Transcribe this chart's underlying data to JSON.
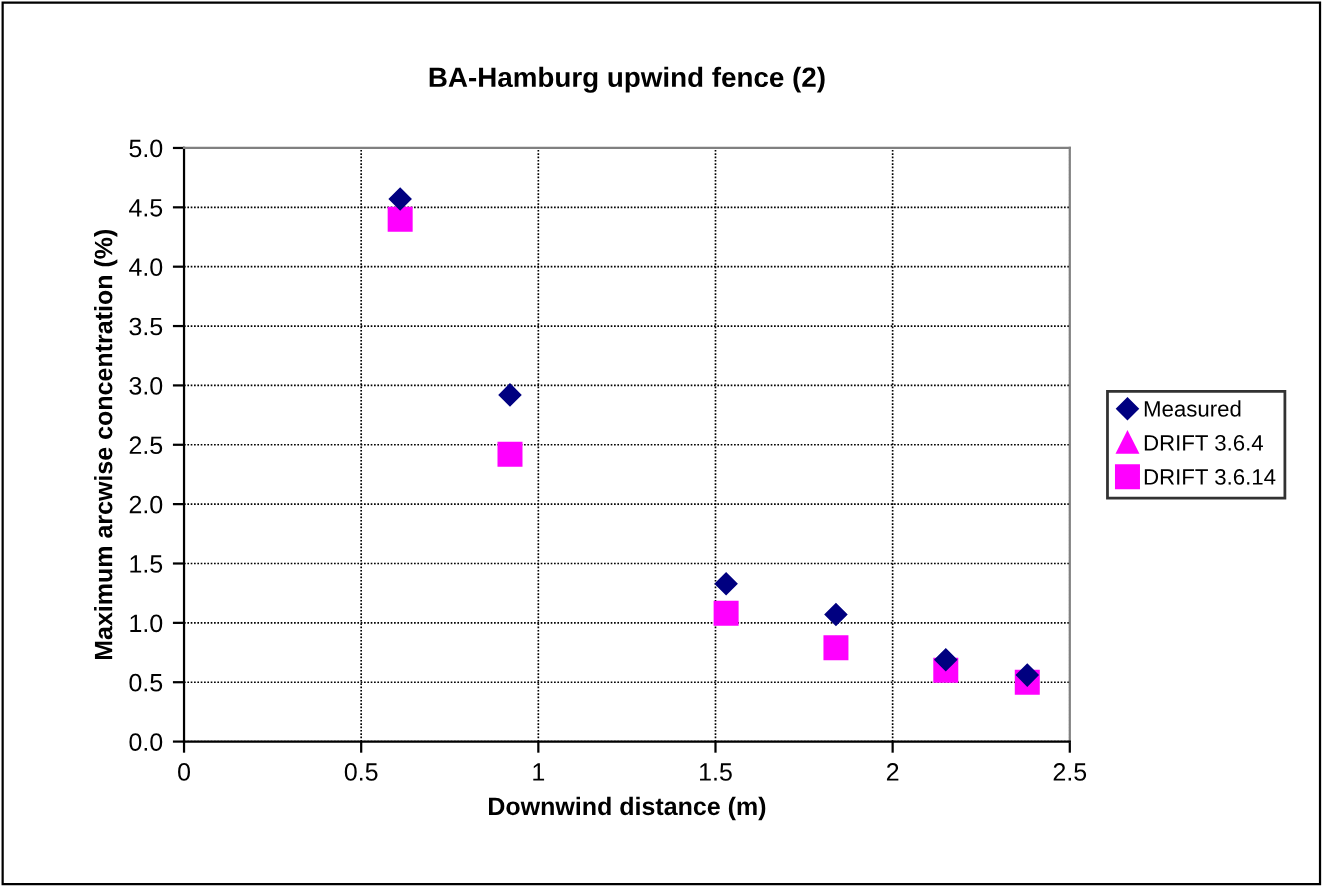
{
  "chart_data": {
    "type": "scatter",
    "title": "BA-Hamburg upwind fence (2)",
    "xlabel": "Downwind distance (m)",
    "ylabel": "Maximum arcwise concentration (%)",
    "xlim": [
      0,
      2.5
    ],
    "xticks": [
      0,
      0.5,
      1,
      1.5,
      2,
      2.5
    ],
    "ylim": [
      0,
      5
    ],
    "yticks": [
      {
        "value": 0,
        "label": "0.0"
      },
      {
        "value": 0.5,
        "label": "0.5"
      },
      {
        "value": 1,
        "label": "1.0"
      },
      {
        "value": 1.5,
        "label": "1.5"
      },
      {
        "value": 2,
        "label": "2.0"
      },
      {
        "value": 2.5,
        "label": "2.5"
      },
      {
        "value": 3,
        "label": "3.0"
      },
      {
        "value": 3.5,
        "label": "3.5"
      },
      {
        "value": 4,
        "label": "4.0"
      },
      {
        "value": 4.5,
        "label": "4.5"
      },
      {
        "value": 5,
        "label": "5.0"
      }
    ],
    "grid": true,
    "legend": "right",
    "x": [
      0.61,
      0.92,
      1.53,
      1.84,
      2.15,
      2.38
    ],
    "series": [
      {
        "name": "Measured",
        "color": "#000080",
        "marker": "diamond",
        "values": [
          4.57,
          2.92,
          1.33,
          1.07,
          0.69,
          0.56
        ]
      },
      {
        "name": "DRIFT 3.6.4",
        "color": "#ff00ff",
        "marker": "triangle",
        "values": [
          null,
          null,
          null,
          null,
          null,
          null
        ]
      },
      {
        "name": "DRIFT 3.6.14",
        "color": "#ff00ff",
        "marker": "square",
        "values": [
          4.4,
          2.42,
          1.08,
          0.79,
          0.6,
          0.5
        ]
      }
    ]
  }
}
